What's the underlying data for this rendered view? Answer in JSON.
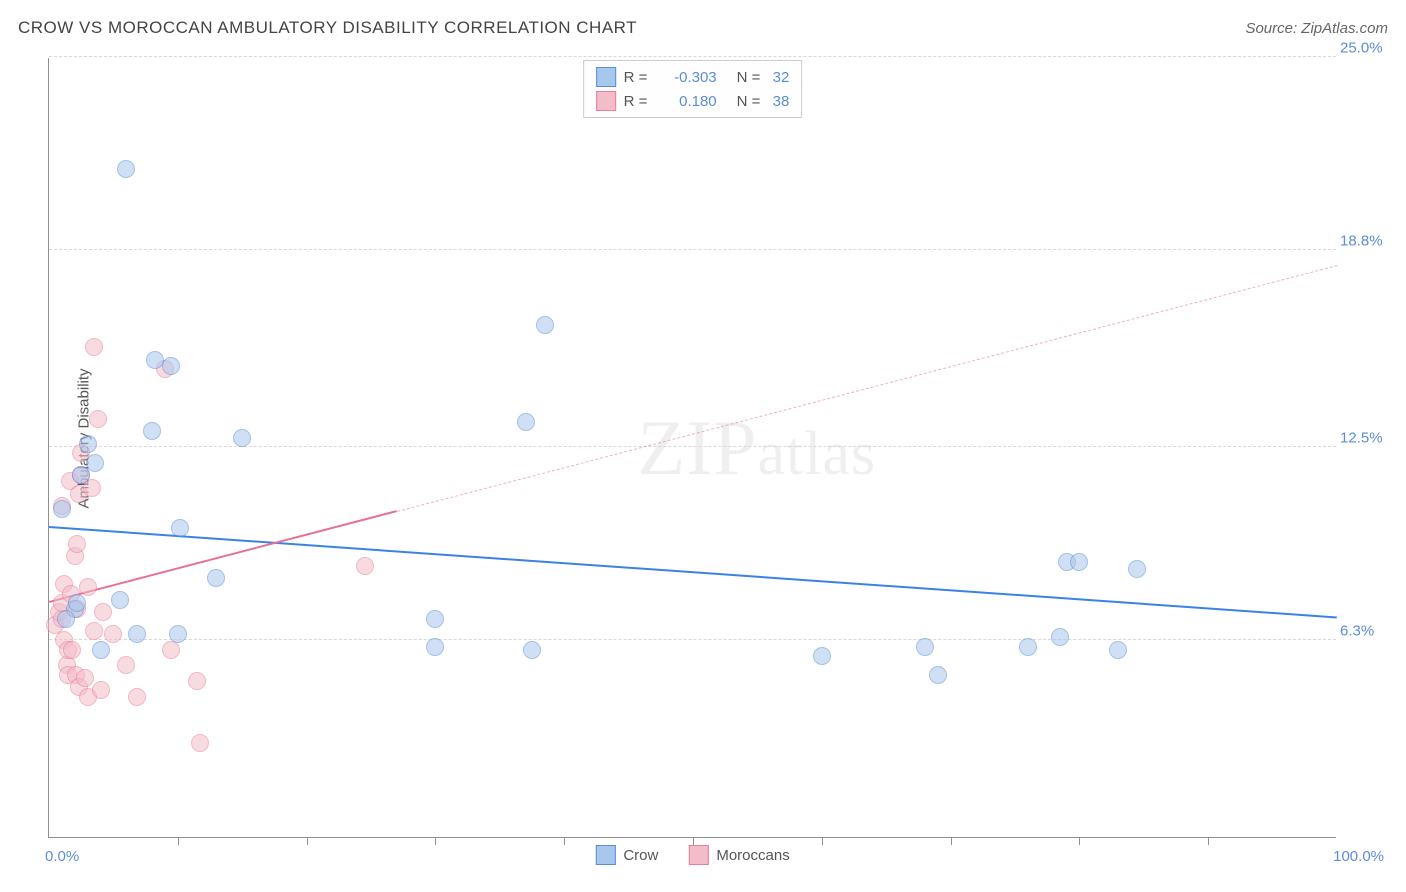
{
  "header": {
    "title": "CROW VS MOROCCAN AMBULATORY DISABILITY CORRELATION CHART",
    "source": "Source: ZipAtlas.com"
  },
  "watermark": {
    "zip": "ZIP",
    "atlas": "atlas"
  },
  "chart": {
    "type": "scatter",
    "y_axis_label": "Ambulatory Disability",
    "xlim": [
      0,
      100
    ],
    "ylim": [
      0,
      25
    ],
    "x_corner_left": "0.0%",
    "x_corner_right": "100.0%",
    "y_ticks": [
      {
        "value": 6.3,
        "label": "6.3%"
      },
      {
        "value": 12.5,
        "label": "12.5%"
      },
      {
        "value": 18.8,
        "label": "18.8%"
      },
      {
        "value": 25.0,
        "label": "25.0%"
      }
    ],
    "x_tick_positions": [
      10,
      20,
      30,
      40,
      50,
      60,
      70,
      80,
      90
    ],
    "grid_color": "#d8d8d8",
    "background_color": "#ffffff",
    "point_radius": 9,
    "point_opacity": 0.55,
    "series": [
      {
        "name": "Crow",
        "color_fill": "#a8c7ec",
        "color_stroke": "#5b8dd6",
        "r": "-0.303",
        "n": "32",
        "trend": {
          "x1": 0,
          "y1": 9.9,
          "x2": 100,
          "y2": 7.0,
          "color": "#3b82e6",
          "width": 2.5,
          "dash": "solid"
        },
        "points": [
          {
            "x": 1.0,
            "y": 10.5
          },
          {
            "x": 2.0,
            "y": 7.3
          },
          {
            "x": 2.2,
            "y": 7.5
          },
          {
            "x": 2.5,
            "y": 11.6
          },
          {
            "x": 3.0,
            "y": 12.6
          },
          {
            "x": 3.6,
            "y": 12.0
          },
          {
            "x": 4.0,
            "y": 6.0
          },
          {
            "x": 5.5,
            "y": 7.6
          },
          {
            "x": 6.0,
            "y": 21.4
          },
          {
            "x": 6.8,
            "y": 6.5
          },
          {
            "x": 8.0,
            "y": 13.0
          },
          {
            "x": 8.2,
            "y": 15.3
          },
          {
            "x": 9.5,
            "y": 15.1
          },
          {
            "x": 10.0,
            "y": 6.5
          },
          {
            "x": 10.2,
            "y": 9.9
          },
          {
            "x": 13.0,
            "y": 8.3
          },
          {
            "x": 15.0,
            "y": 12.8
          },
          {
            "x": 30.0,
            "y": 7.0
          },
          {
            "x": 30.0,
            "y": 6.1
          },
          {
            "x": 37.0,
            "y": 13.3
          },
          {
            "x": 38.5,
            "y": 16.4
          },
          {
            "x": 60.0,
            "y": 5.8
          },
          {
            "x": 68.0,
            "y": 6.1
          },
          {
            "x": 69.0,
            "y": 5.2
          },
          {
            "x": 76.0,
            "y": 6.1
          },
          {
            "x": 78.5,
            "y": 6.4
          },
          {
            "x": 79.0,
            "y": 8.8
          },
          {
            "x": 80.0,
            "y": 8.8
          },
          {
            "x": 83.0,
            "y": 6.0
          },
          {
            "x": 84.5,
            "y": 8.6
          },
          {
            "x": 37.5,
            "y": 6.0
          },
          {
            "x": 1.3,
            "y": 7.0
          }
        ]
      },
      {
        "name": "Moroccans",
        "color_fill": "#f3bcc9",
        "color_stroke": "#e97f9b",
        "r": "0.180",
        "n": "38",
        "trend": {
          "x1": 0,
          "y1": 7.5,
          "x2": 100,
          "y2": 18.3,
          "color": "#e87091",
          "width": 2,
          "dash_solid_until_x": 27
        },
        "points": [
          {
            "x": 0.5,
            "y": 6.8
          },
          {
            "x": 0.8,
            "y": 7.2
          },
          {
            "x": 1.0,
            "y": 7.0
          },
          {
            "x": 1.0,
            "y": 7.5
          },
          {
            "x": 1.2,
            "y": 8.1
          },
          {
            "x": 1.2,
            "y": 6.3
          },
          {
            "x": 1.4,
            "y": 5.5
          },
          {
            "x": 1.5,
            "y": 6.0
          },
          {
            "x": 1.5,
            "y": 5.2
          },
          {
            "x": 1.6,
            "y": 11.4
          },
          {
            "x": 1.7,
            "y": 7.8
          },
          {
            "x": 1.8,
            "y": 6.0
          },
          {
            "x": 2.0,
            "y": 9.0
          },
          {
            "x": 2.1,
            "y": 5.2
          },
          {
            "x": 2.2,
            "y": 9.4
          },
          {
            "x": 2.2,
            "y": 7.3
          },
          {
            "x": 2.3,
            "y": 11.0
          },
          {
            "x": 2.3,
            "y": 4.8
          },
          {
            "x": 2.5,
            "y": 12.3
          },
          {
            "x": 2.5,
            "y": 11.6
          },
          {
            "x": 2.8,
            "y": 5.1
          },
          {
            "x": 3.0,
            "y": 4.5
          },
          {
            "x": 3.0,
            "y": 8.0
          },
          {
            "x": 3.3,
            "y": 11.2
          },
          {
            "x": 3.5,
            "y": 6.6
          },
          {
            "x": 3.5,
            "y": 15.7
          },
          {
            "x": 3.8,
            "y": 13.4
          },
          {
            "x": 4.0,
            "y": 4.7
          },
          {
            "x": 4.2,
            "y": 7.2
          },
          {
            "x": 5.0,
            "y": 6.5
          },
          {
            "x": 6.0,
            "y": 5.5
          },
          {
            "x": 6.8,
            "y": 4.5
          },
          {
            "x": 9.0,
            "y": 15.0
          },
          {
            "x": 9.5,
            "y": 6.0
          },
          {
            "x": 11.5,
            "y": 5.0
          },
          {
            "x": 11.7,
            "y": 3.0
          },
          {
            "x": 24.5,
            "y": 8.7
          },
          {
            "x": 1.0,
            "y": 10.6
          }
        ]
      }
    ],
    "legend_top": {
      "r_label": "R =",
      "n_label": "N ="
    },
    "bottom_legend": {
      "label1": "Crow",
      "label2": "Moroccans"
    }
  }
}
